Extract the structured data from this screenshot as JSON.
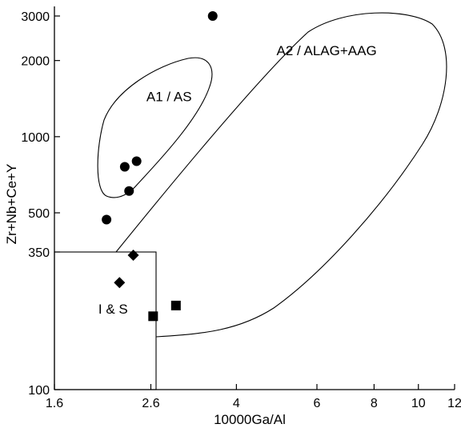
{
  "chart_data": {
    "type": "scatter",
    "title": "",
    "xlabel": "10000Ga/Al",
    "ylabel": "Zr+Nb+Ce+Y",
    "x_scale": "log",
    "y_scale": "log",
    "xlim": [
      1.6,
      12
    ],
    "ylim": [
      100,
      3000
    ],
    "x_ticks": [
      {
        "value": 1.6,
        "label": "1.6"
      },
      {
        "value": 2.6,
        "label": "2.6"
      },
      {
        "value": 4,
        "label": "4"
      },
      {
        "value": 6,
        "label": "6"
      },
      {
        "value": 8,
        "label": "8"
      },
      {
        "value": 10,
        "label": "10"
      },
      {
        "value": 12,
        "label": "12"
      }
    ],
    "y_ticks": [
      {
        "value": 100,
        "label": "100"
      },
      {
        "value": 350,
        "label": "350"
      },
      {
        "value": 500,
        "label": "500"
      },
      {
        "value": 1000,
        "label": "1000"
      },
      {
        "value": 2000,
        "label": "2000"
      },
      {
        "value": 3000,
        "label": "3000"
      }
    ],
    "regions": [
      {
        "label": "A1 / AS",
        "label_at": [
          2.85,
          1380
        ]
      },
      {
        "label": "A2 / ALAG+AAG",
        "label_at": [
          6.3,
          2100
        ]
      },
      {
        "label": "I & S",
        "label_at": [
          2.15,
          200
        ]
      }
    ],
    "series": [
      {
        "marker": "circle",
        "points": [
          [
            2.08,
            470
          ],
          [
            2.28,
            760
          ],
          [
            2.42,
            800
          ],
          [
            2.33,
            610
          ],
          [
            3.55,
            3000
          ]
        ]
      },
      {
        "marker": "diamond",
        "points": [
          [
            2.38,
            340
          ],
          [
            2.22,
            265
          ]
        ]
      },
      {
        "marker": "square",
        "points": [
          [
            2.63,
            195
          ],
          [
            2.95,
            215
          ]
        ]
      }
    ]
  }
}
